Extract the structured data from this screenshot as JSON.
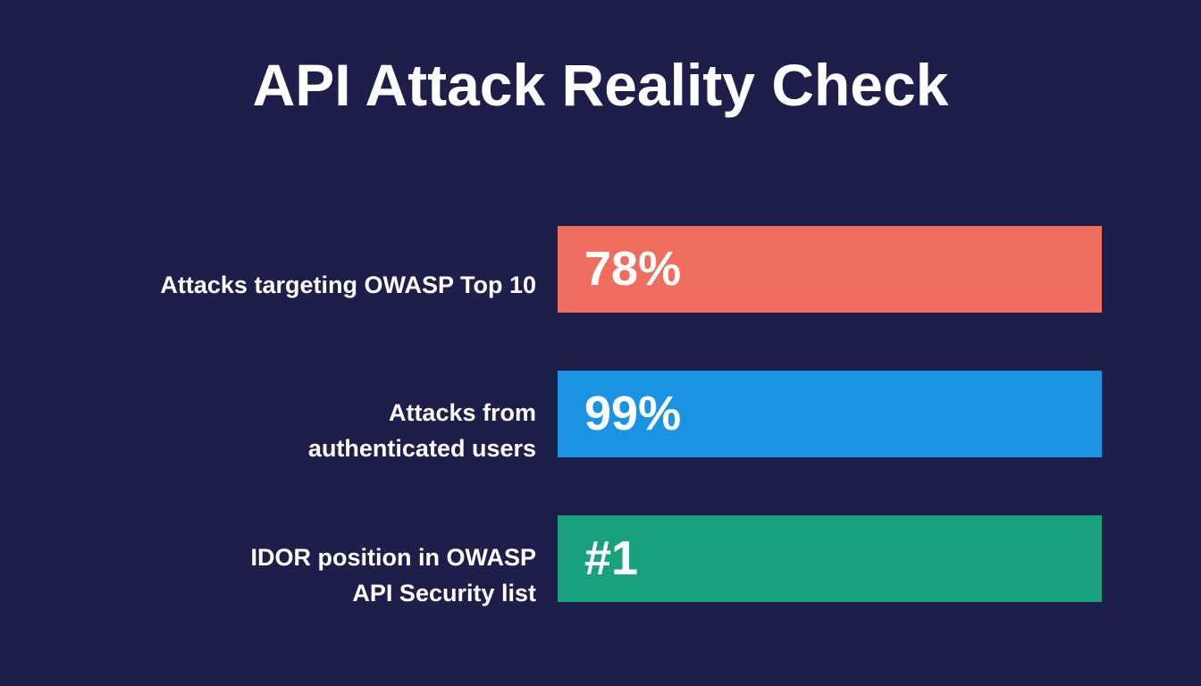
{
  "title": "API Attack Reality Check",
  "stats": [
    {
      "label_lines": [
        "Attacks targeting OWASP Top 10"
      ],
      "value": "78%",
      "color": "#ef6d5e"
    },
    {
      "label_lines": [
        "Attacks from",
        "authenticated users"
      ],
      "value": "99%",
      "color": "#1a93e3"
    },
    {
      "label_lines": [
        "IDOR position in OWASP",
        "API Security list"
      ],
      "value": "#1",
      "color": "#19a07d"
    }
  ]
}
